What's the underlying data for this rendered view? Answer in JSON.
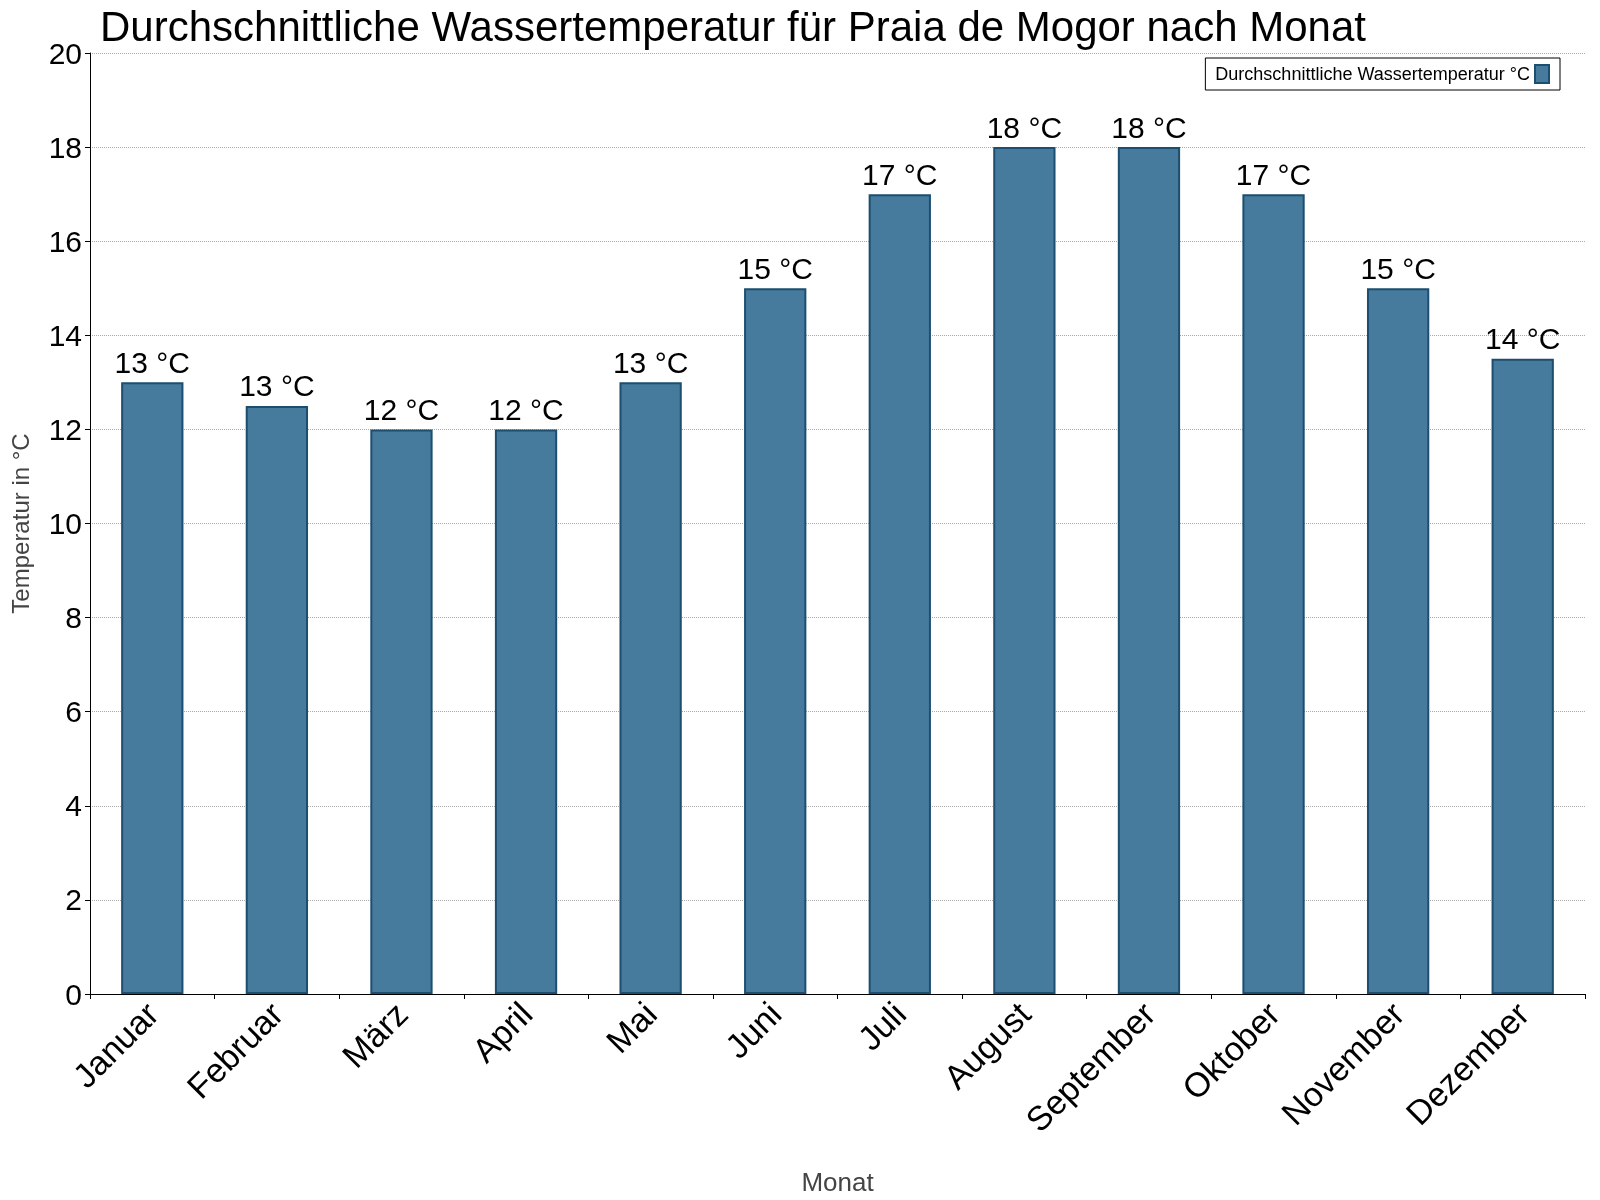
{
  "chart_data": {
    "type": "bar",
    "title": "Durchschnittliche Wassertemperatur für Praia de Mogor nach Monat",
    "xlabel": "Monat",
    "ylabel": "Temperatur in °C",
    "categories": [
      "Januar",
      "Februar",
      "März",
      "April",
      "Mai",
      "Juni",
      "Juli",
      "August",
      "September",
      "Oktober",
      "November",
      "Dezember"
    ],
    "series": [
      {
        "name": "Durchschnittliche Wassertemperatur °C",
        "color": "#467b9d",
        "values": [
          13,
          12.5,
          12,
          12,
          13,
          15,
          17,
          18,
          18,
          17,
          15,
          13.5
        ],
        "value_labels": [
          "13 °C",
          "13 °C",
          "12 °C",
          "12 °C",
          "13 °C",
          "15 °C",
          "17 °C",
          "18 °C",
          "18 °C",
          "17 °C",
          "15 °C",
          "14 °C"
        ]
      }
    ],
    "ylim": [
      0,
      20
    ],
    "yticks": [
      0,
      2,
      4,
      6,
      8,
      10,
      12,
      14,
      16,
      18,
      20
    ],
    "grid": "y",
    "legend": "top right"
  }
}
